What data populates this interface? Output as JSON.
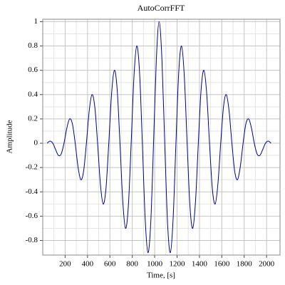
{
  "chart_data": {
    "type": "line",
    "title": "AutoCorrFFT",
    "x_label": "Time, [s]",
    "y_label": "Amplitude",
    "xlim": [
      0,
      2120
    ],
    "ylim": [
      -0.92,
      1.02
    ],
    "xticks": [
      200,
      400,
      600,
      800,
      1000,
      1200,
      1400,
      1600,
      1800,
      2000
    ],
    "yticks": [
      -0.8,
      -0.6,
      -0.4,
      -0.2,
      0,
      0.2,
      0.4,
      0.6,
      0.8,
      1
    ],
    "grid": true,
    "x": [
      40,
      65,
      90,
      115,
      140,
      165,
      190,
      215,
      240,
      265,
      290,
      315,
      340,
      365,
      390,
      415,
      440,
      465,
      490,
      515,
      540,
      565,
      590,
      615,
      640,
      665,
      690,
      715,
      740,
      765,
      790,
      815,
      840,
      865,
      890,
      915,
      940,
      965,
      990,
      1015,
      1040,
      1065,
      1090,
      1115,
      1140,
      1165,
      1190,
      1215,
      1240,
      1265,
      1290,
      1315,
      1340,
      1365,
      1390,
      1415,
      1440,
      1465,
      1490,
      1515,
      1540,
      1565,
      1590,
      1615,
      1640,
      1665,
      1690,
      1715,
      1740,
      1765,
      1790,
      1815,
      1840,
      1865,
      1890,
      1915,
      1940,
      1965,
      1990,
      2015,
      2040
    ],
    "series": [
      {
        "color": "#00008b",
        "values": [
          0,
          0.018,
          0,
          -0.053,
          -0.1,
          -0.088,
          0,
          0.124,
          0.2,
          0.159,
          0,
          -0.194,
          -0.3,
          -0.23,
          0,
          0.265,
          0.4,
          0.3,
          0,
          -0.336,
          -0.5,
          -0.371,
          0,
          0.407,
          0.6,
          0.442,
          0,
          -0.477,
          -0.7,
          -0.513,
          0,
          0.548,
          0.8,
          0.583,
          0,
          -0.619,
          -0.9,
          -0.654,
          0,
          0.689,
          1,
          0.689,
          0,
          -0.654,
          -0.9,
          -0.619,
          0,
          0.583,
          0.8,
          0.548,
          0,
          -0.513,
          -0.7,
          -0.477,
          0,
          0.442,
          0.6,
          0.407,
          0,
          -0.371,
          -0.5,
          -0.336,
          0,
          0.3,
          0.4,
          0.265,
          0,
          -0.23,
          -0.3,
          -0.194,
          0,
          0.159,
          0.2,
          0.124,
          0,
          -0.088,
          -0.1,
          -0.053,
          0,
          0.018,
          0
        ]
      }
    ]
  }
}
